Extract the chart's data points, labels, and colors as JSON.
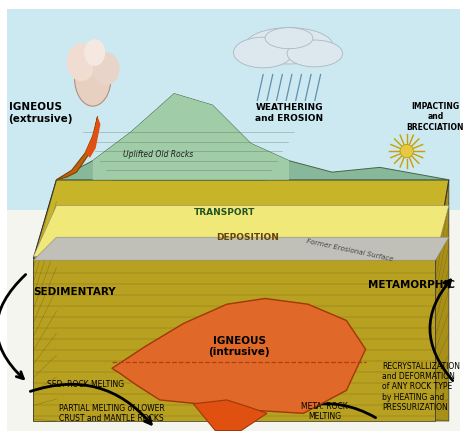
{
  "background_color": "#ffffff",
  "fig_width": 4.74,
  "fig_height": 4.4,
  "dpi": 100,
  "labels": {
    "igneous_extrusive": "IGNEOUS\n(extrusive)",
    "uplifted": "Uplifted Old Rocks",
    "weathering": "WEATHERING\nand EROSION",
    "impacting": "IMPACTING\nand\nBRECCIATION",
    "transport": "TRANSPORT",
    "deposition": "DEPOSITION",
    "former_erosional": "Former Erosional Surface",
    "sedimentary": "SEDIMENTARY",
    "metamorphic": "METAMORPHIC",
    "igneous_intrusive": "IGNEOUS\n(intrusive)",
    "sed_rock": "SED. ROCK MELTING",
    "partial_melting": "PARTIAL MELTING of LOWER\nCRUST and MANTLE ROCKS",
    "meta_rock": "META. ROCK\nMELTING",
    "recrystallization": "RECRYSTALLIZATION\nand DEFORMATION\nof ANY ROCK TYPE\nby HEATING and\nPRESSURIZATION"
  },
  "colors": {
    "sky": "#cce8f0",
    "ground_top": "#c8b428",
    "ground_layer1": "#b8a020",
    "ground_layer2": "#a89018",
    "ground_layer3": "#887010",
    "deposition_yellow": "#f0e878",
    "erosion_surface": "#c0c0b8",
    "mountain_teal": "#88b89a",
    "mountain_light": "#a0cca8",
    "volcano_cone": "#c06010",
    "lava": "#e04010",
    "smoke": "#e8d0c0",
    "cloud_fill": "#dde8ee",
    "rain": "#6090b0",
    "igneous_orange": "#e06828",
    "magma_dark": "#a03808",
    "arrow": "#101010",
    "sun_burst": "#c8a000"
  }
}
